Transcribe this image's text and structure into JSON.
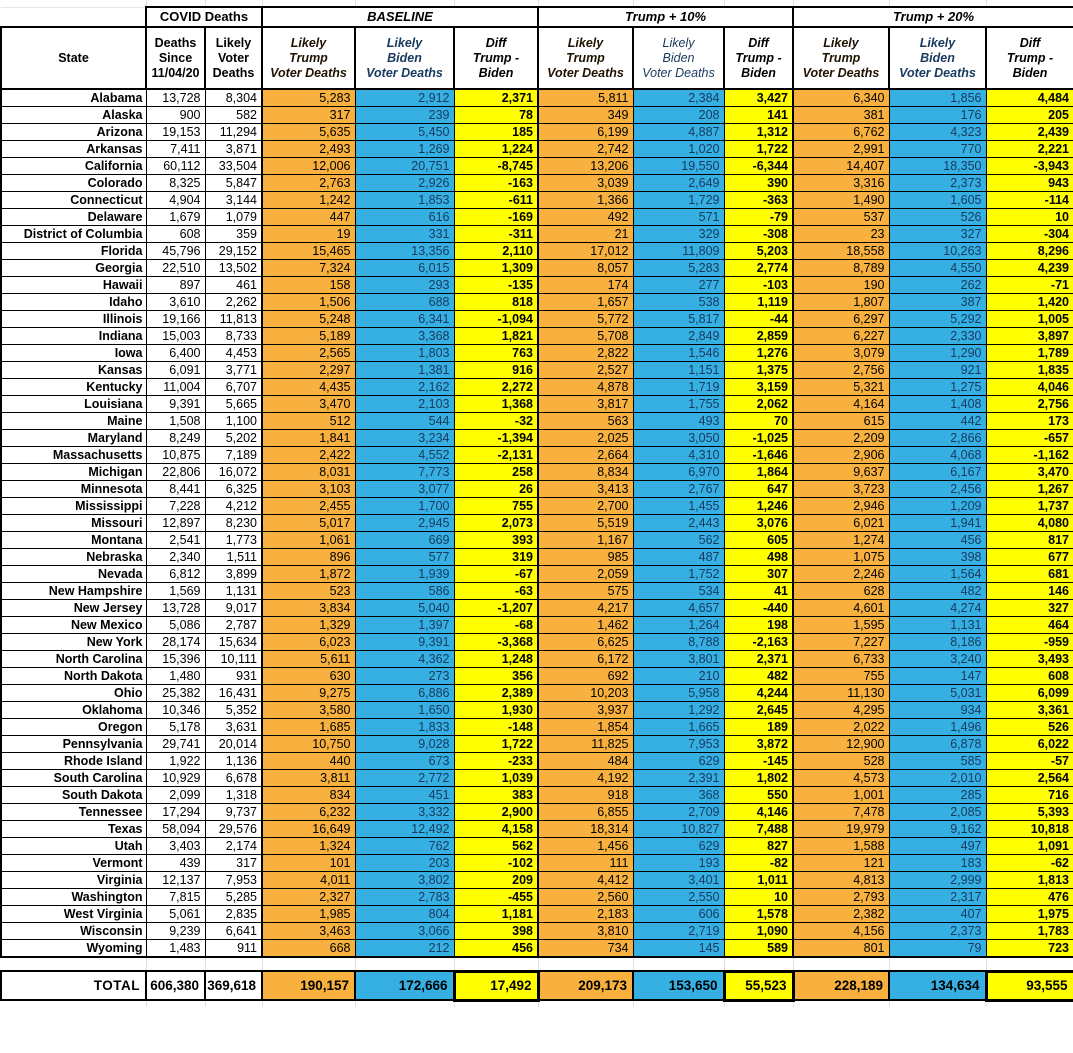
{
  "groups": {
    "covid": "COVID Deaths",
    "baseline": "BASELINE",
    "t10": "Trump + 10%",
    "t20": "Trump + 20%"
  },
  "cols": {
    "state": "State",
    "deaths_since": "Deaths\nSince\n11/04/20",
    "likely_voter": "Likely\nVoter\nDeaths",
    "trump": "Likely\nTrump\nVoter Deaths",
    "biden": "Likely\nBiden\nVoter Deaths",
    "diff": "Diff\nTrump -\nBiden"
  },
  "colors": {
    "trump_orange": "#F8B13E",
    "biden_blue": "#36AFE3",
    "diff_yellow": "#FFFF00"
  },
  "rows": [
    {
      "state": "Alabama",
      "v": [
        "13,728",
        "8,304",
        "5,283",
        "2,912",
        "2,371",
        "5,811",
        "2,384",
        "3,427",
        "6,340",
        "1,856",
        "4,484"
      ]
    },
    {
      "state": "Alaska",
      "v": [
        "900",
        "582",
        "317",
        "239",
        "78",
        "349",
        "208",
        "141",
        "381",
        "176",
        "205"
      ]
    },
    {
      "state": "Arizona",
      "v": [
        "19,153",
        "11,294",
        "5,635",
        "5,450",
        "185",
        "6,199",
        "4,887",
        "1,312",
        "6,762",
        "4,323",
        "2,439"
      ]
    },
    {
      "state": "Arkansas",
      "v": [
        "7,411",
        "3,871",
        "2,493",
        "1,269",
        "1,224",
        "2,742",
        "1,020",
        "1,722",
        "2,991",
        "770",
        "2,221"
      ]
    },
    {
      "state": "California",
      "v": [
        "60,112",
        "33,504",
        "12,006",
        "20,751",
        "-8,745",
        "13,206",
        "19,550",
        "-6,344",
        "14,407",
        "18,350",
        "-3,943"
      ]
    },
    {
      "state": "Colorado",
      "v": [
        "8,325",
        "5,847",
        "2,763",
        "2,926",
        "-163",
        "3,039",
        "2,649",
        "390",
        "3,316",
        "2,373",
        "943"
      ]
    },
    {
      "state": "Connecticut",
      "v": [
        "4,904",
        "3,144",
        "1,242",
        "1,853",
        "-611",
        "1,366",
        "1,729",
        "-363",
        "1,490",
        "1,605",
        "-114"
      ]
    },
    {
      "state": "Delaware",
      "v": [
        "1,679",
        "1,079",
        "447",
        "616",
        "-169",
        "492",
        "571",
        "-79",
        "537",
        "526",
        "10"
      ]
    },
    {
      "state": "District of Columbia",
      "v": [
        "608",
        "359",
        "19",
        "331",
        "-311",
        "21",
        "329",
        "-308",
        "23",
        "327",
        "-304"
      ]
    },
    {
      "state": "Florida",
      "v": [
        "45,796",
        "29,152",
        "15,465",
        "13,356",
        "2,110",
        "17,012",
        "11,809",
        "5,203",
        "18,558",
        "10,263",
        "8,296"
      ]
    },
    {
      "state": "Georgia",
      "v": [
        "22,510",
        "13,502",
        "7,324",
        "6,015",
        "1,309",
        "8,057",
        "5,283",
        "2,774",
        "8,789",
        "4,550",
        "4,239"
      ]
    },
    {
      "state": "Hawaii",
      "v": [
        "897",
        "461",
        "158",
        "293",
        "-135",
        "174",
        "277",
        "-103",
        "190",
        "262",
        "-71"
      ]
    },
    {
      "state": "Idaho",
      "v": [
        "3,610",
        "2,262",
        "1,506",
        "688",
        "818",
        "1,657",
        "538",
        "1,119",
        "1,807",
        "387",
        "1,420"
      ]
    },
    {
      "state": "Illinois",
      "v": [
        "19,166",
        "11,813",
        "5,248",
        "6,341",
        "-1,094",
        "5,772",
        "5,817",
        "-44",
        "6,297",
        "5,292",
        "1,005"
      ]
    },
    {
      "state": "Indiana",
      "v": [
        "15,003",
        "8,733",
        "5,189",
        "3,368",
        "1,821",
        "5,708",
        "2,849",
        "2,859",
        "6,227",
        "2,330",
        "3,897"
      ]
    },
    {
      "state": "Iowa",
      "v": [
        "6,400",
        "4,453",
        "2,565",
        "1,803",
        "763",
        "2,822",
        "1,546",
        "1,276",
        "3,079",
        "1,290",
        "1,789"
      ]
    },
    {
      "state": "Kansas",
      "v": [
        "6,091",
        "3,771",
        "2,297",
        "1,381",
        "916",
        "2,527",
        "1,151",
        "1,375",
        "2,756",
        "921",
        "1,835"
      ]
    },
    {
      "state": "Kentucky",
      "v": [
        "11,004",
        "6,707",
        "4,435",
        "2,162",
        "2,272",
        "4,878",
        "1,719",
        "3,159",
        "5,321",
        "1,275",
        "4,046"
      ]
    },
    {
      "state": "Louisiana",
      "v": [
        "9,391",
        "5,665",
        "3,470",
        "2,103",
        "1,368",
        "3,817",
        "1,755",
        "2,062",
        "4,164",
        "1,408",
        "2,756"
      ]
    },
    {
      "state": "Maine",
      "v": [
        "1,508",
        "1,100",
        "512",
        "544",
        "-32",
        "563",
        "493",
        "70",
        "615",
        "442",
        "173"
      ]
    },
    {
      "state": "Maryland",
      "v": [
        "8,249",
        "5,202",
        "1,841",
        "3,234",
        "-1,394",
        "2,025",
        "3,050",
        "-1,025",
        "2,209",
        "2,866",
        "-657"
      ]
    },
    {
      "state": "Massachusetts",
      "v": [
        "10,875",
        "7,189",
        "2,422",
        "4,552",
        "-2,131",
        "2,664",
        "4,310",
        "-1,646",
        "2,906",
        "4,068",
        "-1,162"
      ]
    },
    {
      "state": "Michigan",
      "v": [
        "22,806",
        "16,072",
        "8,031",
        "7,773",
        "258",
        "8,834",
        "6,970",
        "1,864",
        "9,637",
        "6,167",
        "3,470"
      ]
    },
    {
      "state": "Minnesota",
      "v": [
        "8,441",
        "6,325",
        "3,103",
        "3,077",
        "26",
        "3,413",
        "2,767",
        "647",
        "3,723",
        "2,456",
        "1,267"
      ]
    },
    {
      "state": "Mississippi",
      "v": [
        "7,228",
        "4,212",
        "2,455",
        "1,700",
        "755",
        "2,700",
        "1,455",
        "1,246",
        "2,946",
        "1,209",
        "1,737"
      ]
    },
    {
      "state": "Missouri",
      "v": [
        "12,897",
        "8,230",
        "5,017",
        "2,945",
        "2,073",
        "5,519",
        "2,443",
        "3,076",
        "6,021",
        "1,941",
        "4,080"
      ]
    },
    {
      "state": "Montana",
      "v": [
        "2,541",
        "1,773",
        "1,061",
        "669",
        "393",
        "1,167",
        "562",
        "605",
        "1,274",
        "456",
        "817"
      ]
    },
    {
      "state": "Nebraska",
      "v": [
        "2,340",
        "1,511",
        "896",
        "577",
        "319",
        "985",
        "487",
        "498",
        "1,075",
        "398",
        "677"
      ]
    },
    {
      "state": "Nevada",
      "v": [
        "6,812",
        "3,899",
        "1,872",
        "1,939",
        "-67",
        "2,059",
        "1,752",
        "307",
        "2,246",
        "1,564",
        "681"
      ]
    },
    {
      "state": "New Hampshire",
      "v": [
        "1,569",
        "1,131",
        "523",
        "586",
        "-63",
        "575",
        "534",
        "41",
        "628",
        "482",
        "146"
      ]
    },
    {
      "state": "New Jersey",
      "v": [
        "13,728",
        "9,017",
        "3,834",
        "5,040",
        "-1,207",
        "4,217",
        "4,657",
        "-440",
        "4,601",
        "4,274",
        "327"
      ]
    },
    {
      "state": "New Mexico",
      "v": [
        "5,086",
        "2,787",
        "1,329",
        "1,397",
        "-68",
        "1,462",
        "1,264",
        "198",
        "1,595",
        "1,131",
        "464"
      ]
    },
    {
      "state": "New York",
      "v": [
        "28,174",
        "15,634",
        "6,023",
        "9,391",
        "-3,368",
        "6,625",
        "8,788",
        "-2,163",
        "7,227",
        "8,186",
        "-959"
      ]
    },
    {
      "state": "North Carolina",
      "v": [
        "15,396",
        "10,111",
        "5,611",
        "4,362",
        "1,248",
        "6,172",
        "3,801",
        "2,371",
        "6,733",
        "3,240",
        "3,493"
      ]
    },
    {
      "state": "North Dakota",
      "v": [
        "1,480",
        "931",
        "630",
        "273",
        "356",
        "692",
        "210",
        "482",
        "755",
        "147",
        "608"
      ]
    },
    {
      "state": "Ohio",
      "v": [
        "25,382",
        "16,431",
        "9,275",
        "6,886",
        "2,389",
        "10,203",
        "5,958",
        "4,244",
        "11,130",
        "5,031",
        "6,099"
      ]
    },
    {
      "state": "Oklahoma",
      "v": [
        "10,346",
        "5,352",
        "3,580",
        "1,650",
        "1,930",
        "3,937",
        "1,292",
        "2,645",
        "4,295",
        "934",
        "3,361"
      ]
    },
    {
      "state": "Oregon",
      "v": [
        "5,178",
        "3,631",
        "1,685",
        "1,833",
        "-148",
        "1,854",
        "1,665",
        "189",
        "2,022",
        "1,496",
        "526"
      ]
    },
    {
      "state": "Pennsylvania",
      "v": [
        "29,741",
        "20,014",
        "10,750",
        "9,028",
        "1,722",
        "11,825",
        "7,953",
        "3,872",
        "12,900",
        "6,878",
        "6,022"
      ]
    },
    {
      "state": "Rhode Island",
      "v": [
        "1,922",
        "1,136",
        "440",
        "673",
        "-233",
        "484",
        "629",
        "-145",
        "528",
        "585",
        "-57"
      ]
    },
    {
      "state": "South Carolina",
      "v": [
        "10,929",
        "6,678",
        "3,811",
        "2,772",
        "1,039",
        "4,192",
        "2,391",
        "1,802",
        "4,573",
        "2,010",
        "2,564"
      ]
    },
    {
      "state": "South Dakota",
      "v": [
        "2,099",
        "1,318",
        "834",
        "451",
        "383",
        "918",
        "368",
        "550",
        "1,001",
        "285",
        "716"
      ]
    },
    {
      "state": "Tennessee",
      "v": [
        "17,294",
        "9,737",
        "6,232",
        "3,332",
        "2,900",
        "6,855",
        "2,709",
        "4,146",
        "7,478",
        "2,085",
        "5,393"
      ]
    },
    {
      "state": "Texas",
      "v": [
        "58,094",
        "29,576",
        "16,649",
        "12,492",
        "4,158",
        "18,314",
        "10,827",
        "7,488",
        "19,979",
        "9,162",
        "10,818"
      ]
    },
    {
      "state": "Utah",
      "v": [
        "3,403",
        "2,174",
        "1,324",
        "762",
        "562",
        "1,456",
        "629",
        "827",
        "1,588",
        "497",
        "1,091"
      ]
    },
    {
      "state": "Vermont",
      "v": [
        "439",
        "317",
        "101",
        "203",
        "-102",
        "111",
        "193",
        "-82",
        "121",
        "183",
        "-62"
      ]
    },
    {
      "state": "Virginia",
      "v": [
        "12,137",
        "7,953",
        "4,011",
        "3,802",
        "209",
        "4,412",
        "3,401",
        "1,011",
        "4,813",
        "2,999",
        "1,813"
      ]
    },
    {
      "state": "Washington",
      "v": [
        "7,815",
        "5,285",
        "2,327",
        "2,783",
        "-455",
        "2,560",
        "2,550",
        "10",
        "2,793",
        "2,317",
        "476"
      ]
    },
    {
      "state": "West Virginia",
      "v": [
        "5,061",
        "2,835",
        "1,985",
        "804",
        "1,181",
        "2,183",
        "606",
        "1,578",
        "2,382",
        "407",
        "1,975"
      ]
    },
    {
      "state": "Wisconsin",
      "v": [
        "9,239",
        "6,641",
        "3,463",
        "3,066",
        "398",
        "3,810",
        "2,719",
        "1,090",
        "4,156",
        "2,373",
        "1,783"
      ]
    },
    {
      "state": "Wyoming",
      "v": [
        "1,483",
        "911",
        "668",
        "212",
        "456",
        "734",
        "145",
        "589",
        "801",
        "79",
        "723"
      ]
    }
  ],
  "total_label": "TOTAL",
  "totals": {
    "v": [
      "606,380",
      "369,618",
      "190,157",
      "172,666",
      "17,492",
      "209,173",
      "153,650",
      "55,523",
      "228,189",
      "134,634",
      "93,555"
    ]
  }
}
